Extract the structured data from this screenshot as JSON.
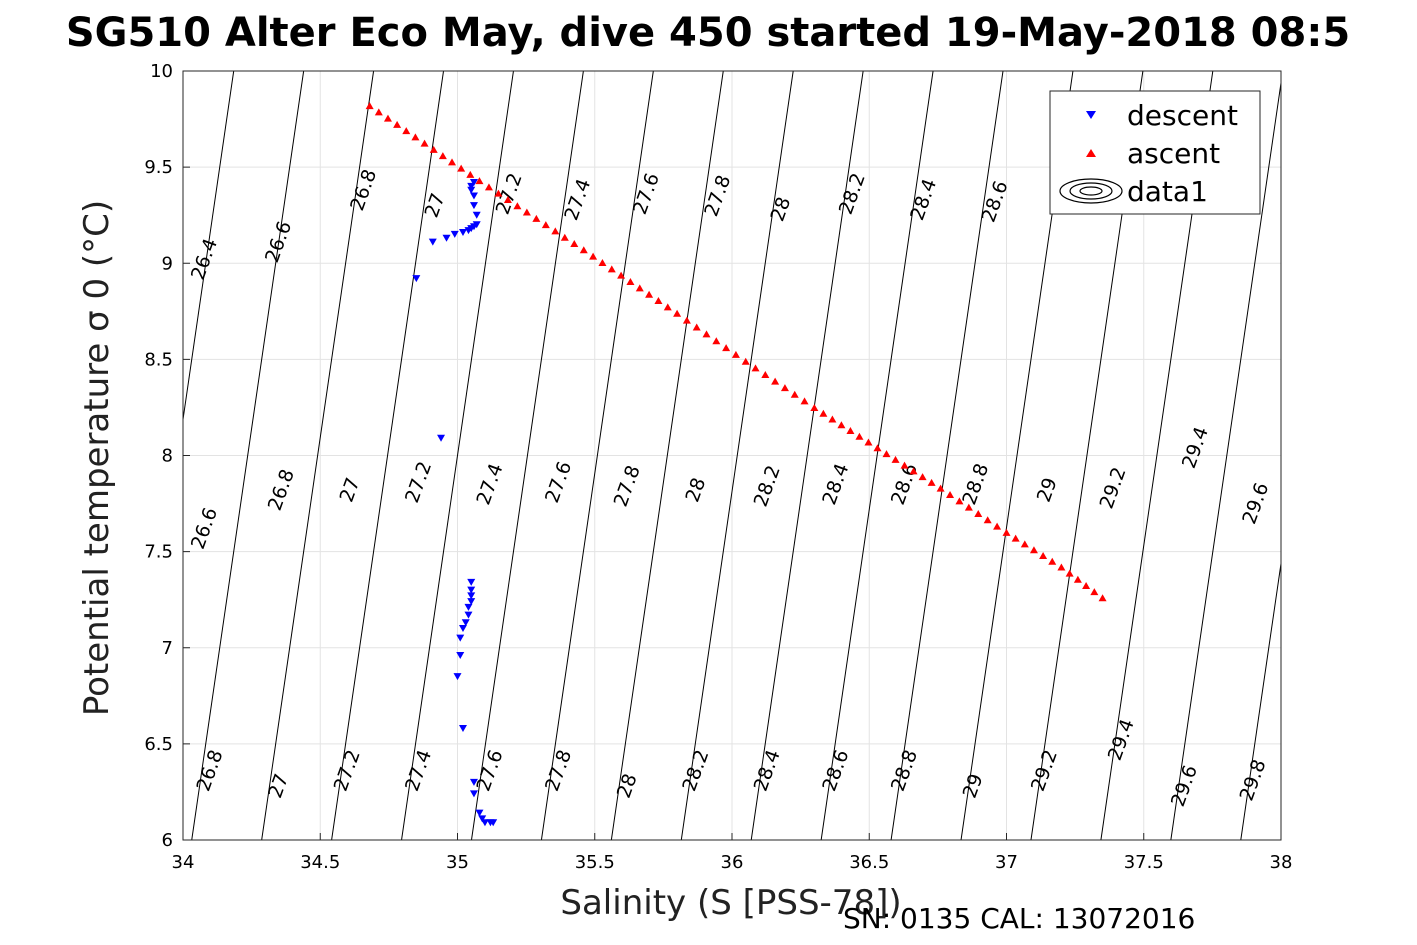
{
  "header": {
    "title": "SG510 Alter Eco May, dive 450 started 19-May-2018 08:5"
  },
  "footer": {
    "text": "SN: 0135  CAL: 13072016"
  },
  "colors": {
    "descent": "#0000ff",
    "ascent": "#ff0000",
    "contour": "#000000",
    "grid": "#e3e3e3"
  },
  "chart_data": {
    "type": "scatter",
    "xlabel": "Salinity (S [PSS-78])",
    "ylabel": "Potential temperature σ 0 (°C)",
    "xlim": [
      34,
      38
    ],
    "ylim": [
      6,
      10
    ],
    "x_ticks": [
      "34",
      "34.5",
      "35",
      "35.5",
      "36",
      "36.5",
      "37",
      "37.5",
      "38"
    ],
    "y_ticks": [
      "6",
      "6.5",
      "7",
      "7.5",
      "8",
      "8.5",
      "9",
      "9.5",
      "10"
    ],
    "grid": true,
    "legend": {
      "placement": "top-right",
      "entries": [
        {
          "label": "descent",
          "marker": "triangle-down"
        },
        {
          "label": "ascent",
          "marker": "triangle-up"
        },
        {
          "label": "data1",
          "marker": "contour-icon"
        }
      ]
    },
    "series": [
      {
        "name": "descent",
        "points": [
          [
            34.85,
            8.92
          ],
          [
            34.91,
            9.11
          ],
          [
            34.96,
            9.13
          ],
          [
            34.99,
            9.15
          ],
          [
            35.02,
            9.16
          ],
          [
            35.04,
            9.17
          ],
          [
            35.05,
            9.18
          ],
          [
            35.06,
            9.19
          ],
          [
            35.07,
            9.2
          ],
          [
            35.07,
            9.25
          ],
          [
            35.06,
            9.3
          ],
          [
            35.06,
            9.35
          ],
          [
            35.05,
            9.38
          ],
          [
            35.05,
            9.4
          ],
          [
            35.06,
            9.42
          ],
          [
            34.94,
            8.09
          ],
          [
            35.05,
            7.34
          ],
          [
            35.05,
            7.3
          ],
          [
            35.05,
            7.27
          ],
          [
            35.05,
            7.24
          ],
          [
            35.04,
            7.21
          ],
          [
            35.04,
            7.17
          ],
          [
            35.03,
            7.13
          ],
          [
            35.02,
            7.1
          ],
          [
            35.01,
            7.05
          ],
          [
            35.01,
            6.96
          ],
          [
            35.0,
            6.85
          ],
          [
            35.02,
            6.58
          ],
          [
            35.06,
            6.3
          ],
          [
            35.06,
            6.24
          ],
          [
            35.08,
            6.14
          ],
          [
            35.09,
            6.11
          ],
          [
            35.1,
            6.09
          ],
          [
            35.12,
            6.09
          ],
          [
            35.13,
            6.09
          ]
        ]
      },
      {
        "name": "ascent",
        "points": [
          [
            34.68,
            9.82
          ],
          [
            35.08,
            9.43
          ],
          [
            35.46,
            9.07
          ],
          [
            35.8,
            8.74
          ],
          [
            36.05,
            8.49
          ],
          [
            36.3,
            8.25
          ],
          [
            36.53,
            8.04
          ],
          [
            36.76,
            7.83
          ],
          [
            37.0,
            7.6
          ],
          [
            37.2,
            7.42
          ],
          [
            37.35,
            7.26
          ]
        ]
      }
    ],
    "contours": [
      {
        "label": "26.4",
        "at": [
          34.08,
          9.02
        ]
      },
      {
        "label": "26.6",
        "at": [
          34.35,
          9.11
        ]
      },
      {
        "label": "26.8",
        "at": [
          34.66,
          9.38
        ]
      },
      {
        "label": "27",
        "at": [
          34.92,
          9.3
        ]
      },
      {
        "label": "27.2",
        "at": [
          35.19,
          9.36
        ]
      },
      {
        "label": "27.4",
        "at": [
          35.44,
          9.33
        ]
      },
      {
        "label": "27.6",
        "at": [
          35.69,
          9.36
        ]
      },
      {
        "label": "27.8",
        "at": [
          35.95,
          9.35
        ]
      },
      {
        "label": "28",
        "at": [
          36.18,
          9.28
        ]
      },
      {
        "label": "28.2",
        "at": [
          36.44,
          9.36
        ]
      },
      {
        "label": "28.4",
        "at": [
          36.7,
          9.33
        ]
      },
      {
        "label": "28.6",
        "at": [
          36.96,
          9.32
        ]
      },
      {
        "label": "26.6",
        "at": [
          34.08,
          7.62
        ]
      },
      {
        "label": "26.8",
        "at": [
          34.36,
          7.82
        ]
      },
      {
        "label": "27",
        "at": [
          34.61,
          7.82
        ]
      },
      {
        "label": "27.2",
        "at": [
          34.86,
          7.86
        ]
      },
      {
        "label": "27.4",
        "at": [
          35.12,
          7.85
        ]
      },
      {
        "label": "27.6",
        "at": [
          35.37,
          7.86
        ]
      },
      {
        "label": "27.8",
        "at": [
          35.62,
          7.84
        ]
      },
      {
        "label": "28",
        "at": [
          35.87,
          7.82
        ]
      },
      {
        "label": "28.2",
        "at": [
          36.13,
          7.84
        ]
      },
      {
        "label": "28.4",
        "at": [
          36.38,
          7.85
        ]
      },
      {
        "label": "28.6",
        "at": [
          36.63,
          7.85
        ]
      },
      {
        "label": "28.8",
        "at": [
          36.89,
          7.85
        ]
      },
      {
        "label": "29",
        "at": [
          37.15,
          7.82
        ]
      },
      {
        "label": "29.2",
        "at": [
          37.39,
          7.83
        ]
      },
      {
        "label": "29.4",
        "at": [
          37.69,
          8.04
        ]
      },
      {
        "label": "29.6",
        "at": [
          37.91,
          7.75
        ]
      },
      {
        "label": "26.8",
        "at": [
          34.1,
          6.36
        ]
      },
      {
        "label": "27",
        "at": [
          34.35,
          6.28
        ]
      },
      {
        "label": "27.2",
        "at": [
          34.6,
          6.36
        ]
      },
      {
        "label": "27.4",
        "at": [
          34.86,
          6.36
        ]
      },
      {
        "label": "27.6",
        "at": [
          35.12,
          6.36
        ]
      },
      {
        "label": "27.8",
        "at": [
          35.37,
          6.36
        ]
      },
      {
        "label": "28",
        "at": [
          35.62,
          6.28
        ]
      },
      {
        "label": "28.2",
        "at": [
          35.87,
          6.36
        ]
      },
      {
        "label": "28.4",
        "at": [
          36.13,
          6.36
        ]
      },
      {
        "label": "28.6",
        "at": [
          36.38,
          6.36
        ]
      },
      {
        "label": "28.8",
        "at": [
          36.63,
          6.36
        ]
      },
      {
        "label": "29",
        "at": [
          36.88,
          6.28
        ]
      },
      {
        "label": "29.2",
        "at": [
          37.14,
          6.36
        ]
      },
      {
        "label": "29.4",
        "at": [
          37.42,
          6.52
        ]
      },
      {
        "label": "29.6",
        "at": [
          37.65,
          6.28
        ]
      },
      {
        "label": "29.8",
        "at": [
          37.9,
          6.31
        ]
      }
    ]
  }
}
